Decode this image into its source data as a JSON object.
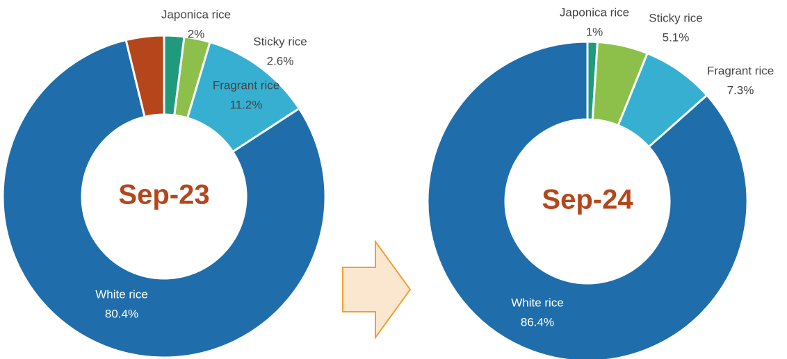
{
  "chart_data": [
    {
      "type": "donut",
      "title": "Sep-23",
      "categories": [
        "Japonica rice",
        "Sticky rice",
        "Fragrant rice",
        "White rice",
        null
      ],
      "values": [
        2,
        2.6,
        11.2,
        80.4,
        3.8
      ],
      "value_labels": [
        "2%",
        "2.6%",
        "11.2%",
        "80.4%",
        null
      ],
      "colors": [
        "#1f9a7c",
        "#8cc04b",
        "#37afd1",
        "#1f6eab",
        "#b5461c"
      ]
    },
    {
      "type": "donut",
      "title": "Sep-24",
      "categories": [
        "Japonica rice",
        "Sticky rice",
        "Fragrant rice",
        "White rice"
      ],
      "values": [
        1,
        5.1,
        7.3,
        86.4
      ],
      "value_labels": [
        "1%",
        "5.1%",
        "7.3%",
        "86.4%"
      ],
      "colors": [
        "#1f9a7c",
        "#8cc04b",
        "#37afd1",
        "#1f6eab"
      ]
    }
  ]
}
